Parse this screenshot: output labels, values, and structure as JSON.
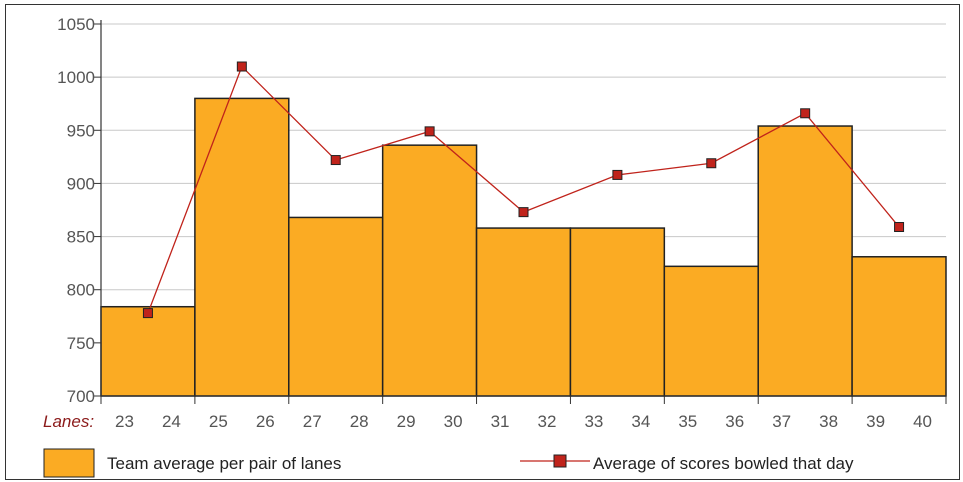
{
  "chart_data": {
    "type": "bar",
    "lanes_label": "Lanes:",
    "lane_numbers": [
      23,
      24,
      25,
      26,
      27,
      28,
      29,
      30,
      31,
      32,
      33,
      34,
      35,
      36,
      37,
      38,
      39,
      40
    ],
    "categories": [
      "23-24",
      "25-26",
      "27-28",
      "29-30",
      "31-32",
      "33-34",
      "35-36",
      "37-38",
      "39-40"
    ],
    "series": [
      {
        "name": "Team average per pair of lanes",
        "kind": "bar",
        "color": "#fbab23",
        "values": [
          784,
          980,
          868,
          936,
          858,
          858,
          822,
          954,
          831
        ]
      },
      {
        "name": "Average of scores bowled that day",
        "kind": "line",
        "color": "#c0231b",
        "values": [
          778,
          1010,
          922,
          949,
          873,
          908,
          919,
          966,
          859
        ]
      }
    ],
    "yticks": [
      700,
      750,
      800,
      850,
      900,
      950,
      1000,
      1050
    ],
    "ylim": [
      700,
      1050
    ],
    "grid": true,
    "legend_position": "bottom"
  }
}
